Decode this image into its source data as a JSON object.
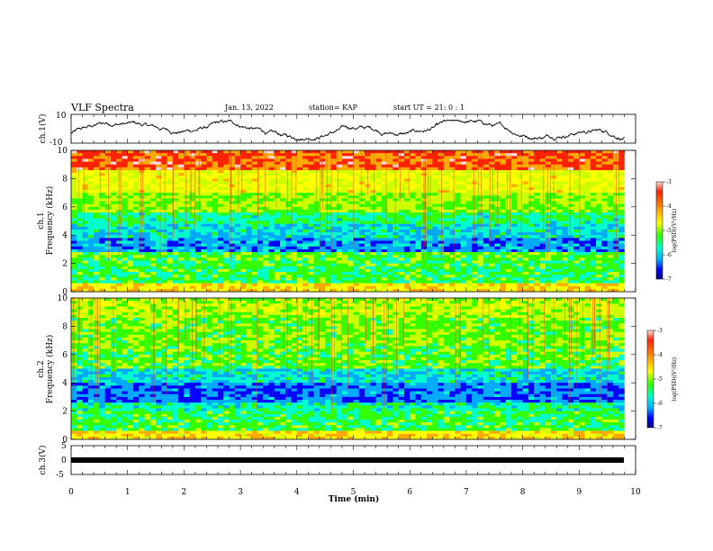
{
  "header": {
    "title": "VLF Spectra",
    "date": "Jan. 13, 2022",
    "station": "station= KAP",
    "start": "start  UT =  21: 0  : 1"
  },
  "chart_data": [
    {
      "type": "line",
      "panel": "ch1-waveform",
      "ylabel": "ch.1(V)",
      "ylim": [
        -10,
        10
      ],
      "yticks": [
        "10",
        "-10"
      ],
      "xlim": [
        0,
        10
      ]
    },
    {
      "type": "heatmap",
      "panel": "ch1-spectrogram",
      "ylabel_top": "ch.1",
      "ylabel": "Frequency (kHz)",
      "ylim": [
        0,
        10
      ],
      "yticks": [
        "0",
        "2",
        "4",
        "6",
        "8",
        "10"
      ],
      "xlim": [
        0,
        9.8
      ],
      "colorbar": {
        "label": "log(PSD)(V²/Hz)",
        "range": [
          -7,
          -3
        ],
        "ticks": [
          "-3",
          "-4",
          "-5",
          "-6",
          "-7"
        ]
      }
    },
    {
      "type": "heatmap",
      "panel": "ch2-spectrogram",
      "ylabel_top": "ch.2",
      "ylabel": "Frequency (kHz)",
      "ylim": [
        0,
        10
      ],
      "yticks": [
        "0",
        "2",
        "4",
        "6",
        "8",
        "10"
      ],
      "xlim": [
        0,
        9.8
      ],
      "colorbar": {
        "label": "log(PSD)(V²/Hz)",
        "range": [
          -7,
          -3
        ],
        "ticks": [
          "-3",
          "-4",
          "-5",
          "-6",
          "-7"
        ]
      }
    },
    {
      "type": "line",
      "panel": "ch3-waveform",
      "ylabel": "ch.3(V)",
      "ylim": [
        -5,
        5
      ],
      "yticks": [
        "5",
        "0",
        "-5"
      ],
      "xlim": [
        0,
        10
      ],
      "xlabel": "Time  (min)",
      "xticks": [
        "0",
        "1",
        "2",
        "3",
        "4",
        "5",
        "6",
        "7",
        "8",
        "9",
        "10"
      ]
    }
  ],
  "colors": {
    "scale": [
      "#000080",
      "#0000ff",
      "#00aaff",
      "#00ffcc",
      "#33ff00",
      "#ccff00",
      "#ffff00",
      "#ffaa00",
      "#ff2200",
      "#ffdddd"
    ],
    "line": "#000000"
  }
}
